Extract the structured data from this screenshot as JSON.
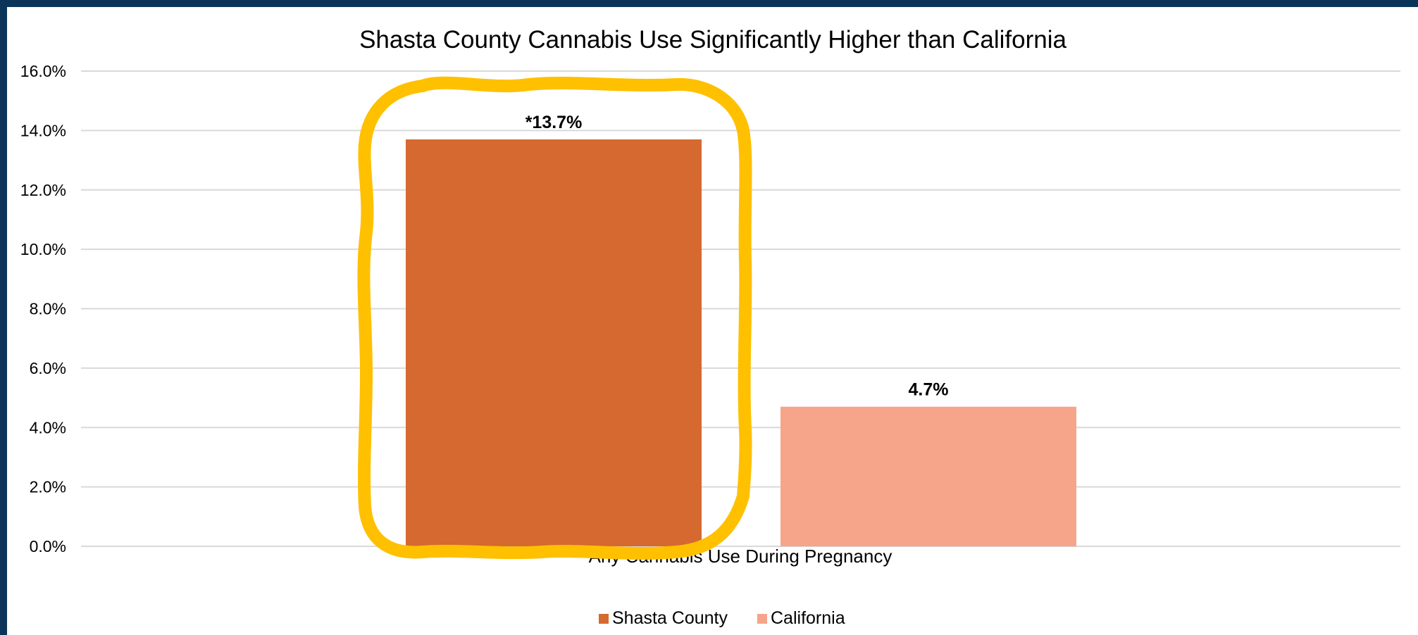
{
  "colors": {
    "frame": "#0b3558",
    "gridline": "#d9d9d9",
    "highlight": "#ffc000"
  },
  "chart_data": {
    "type": "bar",
    "title": "Shasta County Cannabis Use Significantly Higher than California",
    "xlabel": "",
    "ylabel": "",
    "categories": [
      "Any Cannabis Use During Pregnancy"
    ],
    "series": [
      {
        "name": "Shasta County",
        "values": [
          13.7
        ],
        "label": "*13.7%",
        "color": "#d5692f"
      },
      {
        "name": "California",
        "values": [
          4.7
        ],
        "label": "4.7%",
        "color": "#f6a48a"
      }
    ],
    "ylim": [
      0,
      16
    ],
    "yticks": [
      0,
      2,
      4,
      6,
      8,
      10,
      12,
      14,
      16
    ],
    "ytick_labels": [
      "0.0%",
      "2.0%",
      "4.0%",
      "6.0%",
      "8.0%",
      "10.0%",
      "12.0%",
      "14.0%",
      "16.0%"
    ],
    "grid": true,
    "legend_position": "bottom",
    "annotation": "hand-drawn highlight around the Shasta County bar"
  }
}
